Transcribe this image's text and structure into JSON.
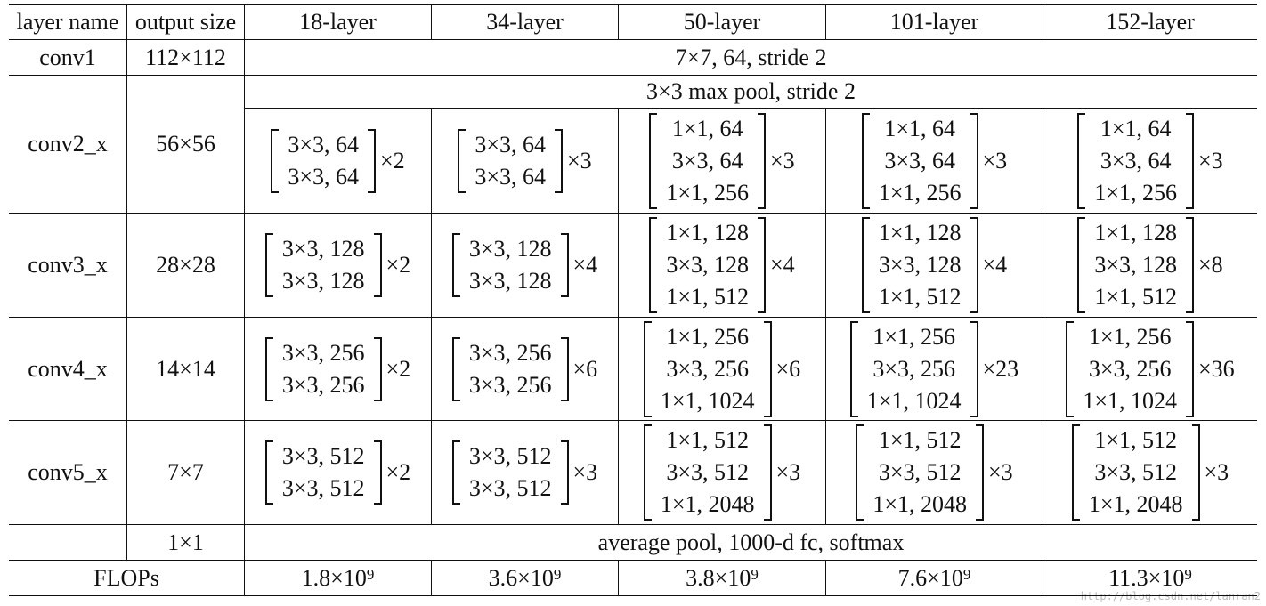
{
  "header": {
    "columns": [
      "layer name",
      "output size",
      "18-layer",
      "34-layer",
      "50-layer",
      "101-layer",
      "152-layer"
    ]
  },
  "rows": [
    {
      "name": "conv1",
      "output_size": "112×112",
      "spanning": "7×7, 64, stride 2"
    },
    {
      "name": "conv2_x",
      "output_size": "56×56",
      "spanning": "3×3 max pool, stride 2",
      "blocks": [
        {
          "lines": [
            "3×3, 64",
            "3×3, 64"
          ],
          "repeat": "×2"
        },
        {
          "lines": [
            "3×3, 64",
            "3×3, 64"
          ],
          "repeat": "×3"
        },
        {
          "lines": [
            "1×1, 64",
            "3×3, 64",
            "1×1, 256"
          ],
          "repeat": "×3"
        },
        {
          "lines": [
            "1×1, 64",
            "3×3, 64",
            "1×1, 256"
          ],
          "repeat": "×3"
        },
        {
          "lines": [
            "1×1, 64",
            "3×3, 64",
            "1×1, 256"
          ],
          "repeat": "×3"
        }
      ]
    },
    {
      "name": "conv3_x",
      "output_size": "28×28",
      "blocks": [
        {
          "lines": [
            "3×3, 128",
            "3×3, 128"
          ],
          "repeat": "×2"
        },
        {
          "lines": [
            "3×3, 128",
            "3×3, 128"
          ],
          "repeat": "×4"
        },
        {
          "lines": [
            "1×1, 128",
            "3×3, 128",
            "1×1, 512"
          ],
          "repeat": "×4"
        },
        {
          "lines": [
            "1×1, 128",
            "3×3, 128",
            "1×1, 512"
          ],
          "repeat": "×4"
        },
        {
          "lines": [
            "1×1, 128",
            "3×3, 128",
            "1×1, 512"
          ],
          "repeat": "×8"
        }
      ]
    },
    {
      "name": "conv4_x",
      "output_size": "14×14",
      "blocks": [
        {
          "lines": [
            "3×3, 256",
            "3×3, 256"
          ],
          "repeat": "×2"
        },
        {
          "lines": [
            "3×3, 256",
            "3×3, 256"
          ],
          "repeat": "×6"
        },
        {
          "lines": [
            "1×1, 256",
            "3×3, 256",
            "1×1, 1024"
          ],
          "repeat": "×6"
        },
        {
          "lines": [
            "1×1, 256",
            "3×3, 256",
            "1×1, 1024"
          ],
          "repeat": "×23"
        },
        {
          "lines": [
            "1×1, 256",
            "3×3, 256",
            "1×1, 1024"
          ],
          "repeat": "×36"
        }
      ]
    },
    {
      "name": "conv5_x",
      "output_size": "7×7",
      "blocks": [
        {
          "lines": [
            "3×3, 512",
            "3×3, 512"
          ],
          "repeat": "×2"
        },
        {
          "lines": [
            "3×3, 512",
            "3×3, 512"
          ],
          "repeat": "×3"
        },
        {
          "lines": [
            "1×1, 512",
            "3×3, 512",
            "1×1, 2048"
          ],
          "repeat": "×3"
        },
        {
          "lines": [
            "1×1, 512",
            "3×3, 512",
            "1×1, 2048"
          ],
          "repeat": "×3"
        },
        {
          "lines": [
            "1×1, 512",
            "3×3, 512",
            "1×1, 2048"
          ],
          "repeat": "×3"
        }
      ]
    },
    {
      "output_size": "1×1",
      "spanning": "average pool, 1000-d fc, softmax"
    }
  ],
  "flops": {
    "label": "FLOPs",
    "values": [
      {
        "base": "1.8×10",
        "exp": "9"
      },
      {
        "base": "3.6×10",
        "exp": "9"
      },
      {
        "base": "3.8×10",
        "exp": "9"
      },
      {
        "base": "7.6×10",
        "exp": "9"
      },
      {
        "base": "11.3×10",
        "exp": "9"
      }
    ]
  },
  "watermark": "http://blog.csdn.net/lanran2"
}
